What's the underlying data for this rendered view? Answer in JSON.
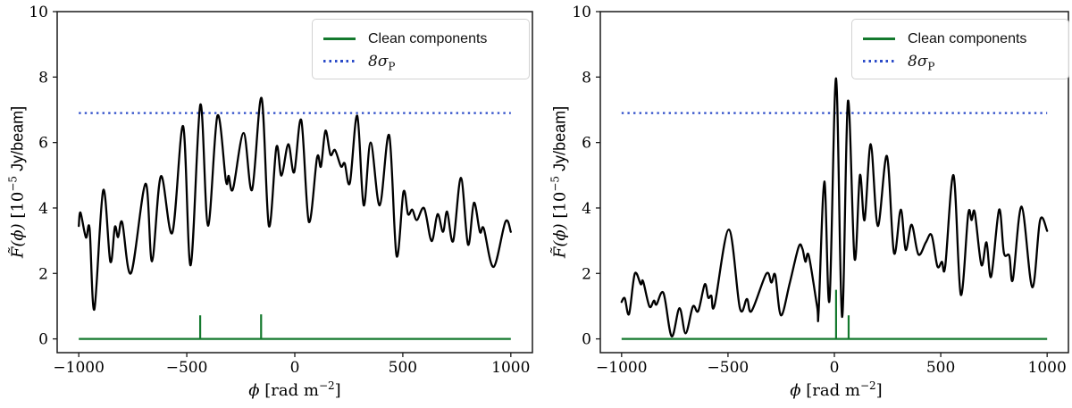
{
  "colors": {
    "dirty_line": "#000000",
    "clean_line": "#14792e",
    "threshold_line": "#2b4bc8",
    "spine": "#1a1a1a",
    "tick_text": "#000000",
    "legend_border": "#d2d2d2"
  },
  "labels": {
    "ylabel_f": "F̃(ϕ)",
    "ylabel_mid": " [10",
    "ylabel_sup": "−5",
    "ylabel_post": " Jy/beam]",
    "xlabel_phi": "ϕ",
    "xlabel_mid": " [rad m",
    "xlabel_sup": "−2",
    "xlabel_post": "]",
    "legend": [
      {
        "swatch": "solid-green-line",
        "label": "Clean components"
      },
      {
        "swatch": "dotted-blue-line",
        "label_main": "8σ",
        "label_sub": "P"
      }
    ]
  },
  "chart_data": [
    {
      "type": "line",
      "panel": "left",
      "xlabel": "phi [rad m^-2]",
      "ylabel": "F(phi) [10^-5 Jy/beam]",
      "xlim": [
        -1100,
        1100
      ],
      "ylim": [
        -0.42,
        10
      ],
      "xticks": [
        -1000,
        -500,
        0,
        500,
        1000
      ],
      "yticks": [
        0,
        2,
        4,
        6,
        8,
        10
      ],
      "grid": false,
      "legend_position": "upper right",
      "threshold": {
        "label": "8 sigma_P",
        "value": 6.9,
        "x_start": -1000,
        "x_end": 1000
      },
      "clean_components": {
        "baseline": 0,
        "x_start": -1000,
        "x_end": 1000,
        "spikes": [
          [
            -438,
            0.72
          ],
          [
            -156,
            0.75
          ]
        ]
      },
      "dirty_spectrum": [
        [
          -1000,
          3.45
        ],
        [
          -992,
          3.86
        ],
        [
          -967,
          3.1
        ],
        [
          -950,
          3.37
        ],
        [
          -928,
          0.9
        ],
        [
          -887,
          4.54
        ],
        [
          -854,
          2.36
        ],
        [
          -833,
          3.42
        ],
        [
          -818,
          3.11
        ],
        [
          -799,
          3.56
        ],
        [
          -758,
          2.01
        ],
        [
          -691,
          4.74
        ],
        [
          -661,
          2.37
        ],
        [
          -620,
          4.97
        ],
        [
          -567,
          3.24
        ],
        [
          -517,
          6.5
        ],
        [
          -482,
          2.25
        ],
        [
          -437,
          7.16
        ],
        [
          -402,
          3.46
        ],
        [
          -358,
          6.82
        ],
        [
          -319,
          4.83
        ],
        [
          -306,
          4.98
        ],
        [
          -286,
          4.58
        ],
        [
          -237,
          6.29
        ],
        [
          -198,
          4.55
        ],
        [
          -154,
          7.36
        ],
        [
          -120,
          3.45
        ],
        [
          -85,
          5.86
        ],
        [
          -62,
          4.99
        ],
        [
          -30,
          5.95
        ],
        [
          -3,
          5.09
        ],
        [
          30,
          6.68
        ],
        [
          65,
          3.58
        ],
        [
          103,
          5.54
        ],
        [
          121,
          5.27
        ],
        [
          142,
          6.36
        ],
        [
          165,
          5.63
        ],
        [
          186,
          5.77
        ],
        [
          214,
          5.27
        ],
        [
          231,
          5.36
        ],
        [
          255,
          4.77
        ],
        [
          289,
          6.82
        ],
        [
          319,
          4.08
        ],
        [
          351,
          6.0
        ],
        [
          393,
          4.08
        ],
        [
          437,
          6.22
        ],
        [
          471,
          2.54
        ],
        [
          503,
          4.49
        ],
        [
          524,
          3.81
        ],
        [
          544,
          3.95
        ],
        [
          565,
          3.63
        ],
        [
          599,
          3.99
        ],
        [
          633,
          2.99
        ],
        [
          661,
          3.81
        ],
        [
          686,
          3.27
        ],
        [
          705,
          3.89
        ],
        [
          733,
          2.99
        ],
        [
          769,
          4.92
        ],
        [
          802,
          2.88
        ],
        [
          829,
          4.16
        ],
        [
          857,
          3.27
        ],
        [
          875,
          3.37
        ],
        [
          920,
          2.2
        ],
        [
          975,
          3.58
        ],
        [
          1000,
          3.27
        ]
      ]
    },
    {
      "type": "line",
      "panel": "right",
      "xlabel": "phi [rad m^-2]",
      "ylabel": "F(phi) [10^-5 Jy/beam]",
      "xlim": [
        -1100,
        1100
      ],
      "ylim": [
        -0.42,
        10
      ],
      "xticks": [
        -1000,
        -500,
        0,
        500,
        1000
      ],
      "yticks": [
        0,
        2,
        4,
        6,
        8,
        10
      ],
      "grid": false,
      "legend_position": "upper right",
      "threshold": {
        "label": "8 sigma_P",
        "value": 6.9,
        "x_start": -1000,
        "x_end": 1000
      },
      "clean_components": {
        "baseline": 0,
        "x_start": -1000,
        "x_end": 1000,
        "spikes": [
          [
            8,
            1.5
          ],
          [
            67,
            0.72
          ]
        ]
      },
      "dirty_spectrum": [
        [
          -1000,
          1.13
        ],
        [
          -985,
          1.24
        ],
        [
          -965,
          0.76
        ],
        [
          -938,
          1.99
        ],
        [
          -910,
          1.67
        ],
        [
          -899,
          1.76
        ],
        [
          -869,
          0.99
        ],
        [
          -848,
          1.17
        ],
        [
          -836,
          1.05
        ],
        [
          -803,
          1.4
        ],
        [
          -765,
          0.08
        ],
        [
          -728,
          0.94
        ],
        [
          -699,
          0.17
        ],
        [
          -665,
          0.99
        ],
        [
          -640,
          0.85
        ],
        [
          -609,
          1.67
        ],
        [
          -593,
          1.26
        ],
        [
          -578,
          1.32
        ],
        [
          -563,
          1.03
        ],
        [
          -496,
          3.34
        ],
        [
          -444,
          0.94
        ],
        [
          -411,
          1.22
        ],
        [
          -389,
          0.85
        ],
        [
          -320,
          1.99
        ],
        [
          -296,
          1.72
        ],
        [
          -278,
          1.95
        ],
        [
          -251,
          0.72
        ],
        [
          -210,
          1.7
        ],
        [
          -168,
          2.81
        ],
        [
          -150,
          2.75
        ],
        [
          -136,
          2.36
        ],
        [
          -120,
          2.54
        ],
        [
          -81,
          0.99
        ],
        [
          -74,
          0.85
        ],
        [
          -47,
          4.81
        ],
        [
          -23,
          1.17
        ],
        [
          8,
          7.96
        ],
        [
          36,
          0.67
        ],
        [
          64,
          7.27
        ],
        [
          95,
          2.45
        ],
        [
          120,
          5.0
        ],
        [
          142,
          3.63
        ],
        [
          171,
          5.95
        ],
        [
          204,
          3.45
        ],
        [
          247,
          5.59
        ],
        [
          280,
          2.63
        ],
        [
          312,
          3.95
        ],
        [
          335,
          2.72
        ],
        [
          363,
          3.49
        ],
        [
          395,
          2.58
        ],
        [
          430,
          2.95
        ],
        [
          457,
          3.17
        ],
        [
          484,
          2.22
        ],
        [
          505,
          2.36
        ],
        [
          521,
          2.22
        ],
        [
          560,
          5.0
        ],
        [
          594,
          1.35
        ],
        [
          629,
          3.81
        ],
        [
          645,
          3.63
        ],
        [
          660,
          3.86
        ],
        [
          691,
          2.26
        ],
        [
          715,
          2.95
        ],
        [
          737,
          1.9
        ],
        [
          774,
          3.95
        ],
        [
          797,
          2.63
        ],
        [
          822,
          2.54
        ],
        [
          839,
          1.81
        ],
        [
          880,
          4.04
        ],
        [
          930,
          1.58
        ],
        [
          967,
          3.63
        ],
        [
          1000,
          3.3
        ]
      ]
    }
  ]
}
